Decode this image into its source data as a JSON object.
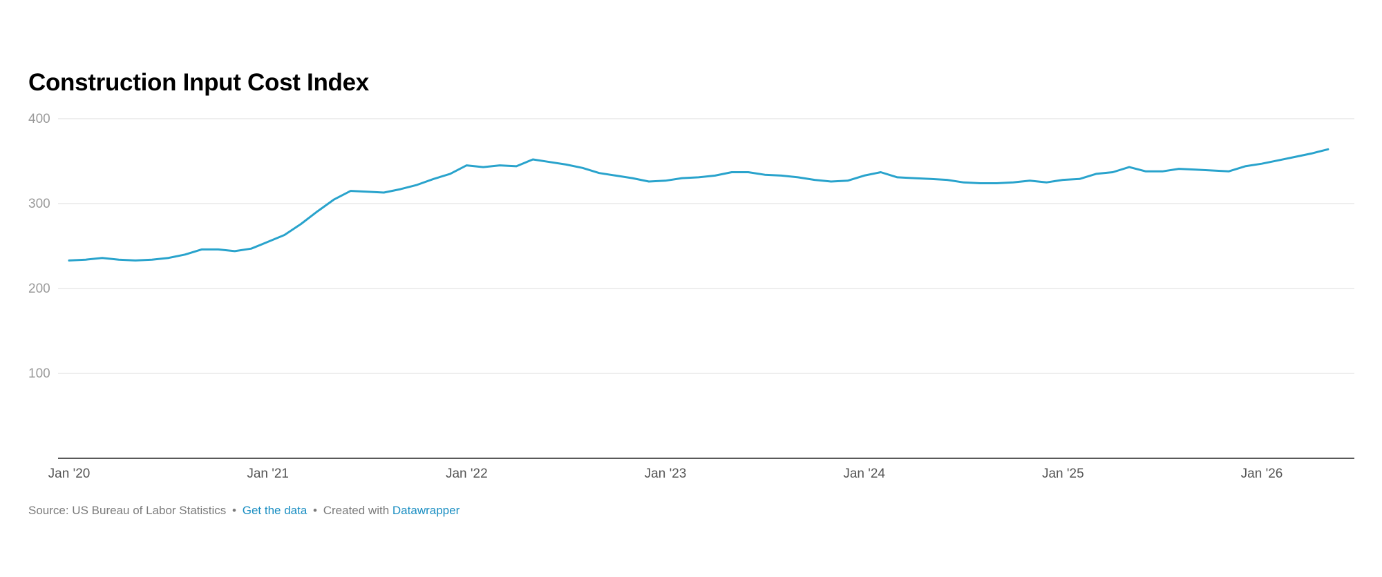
{
  "chart_data": {
    "type": "line",
    "title": "Construction Input Cost Index",
    "xlabel": "",
    "ylabel": "",
    "ylim": [
      0,
      400
    ],
    "y_ticks": [
      400,
      300,
      200,
      100
    ],
    "x_tick_labels": [
      "Jan '20",
      "Jan '21",
      "Jan '22",
      "Jan '23",
      "Jan '24",
      "Jan '25",
      "Jan '26"
    ],
    "grid": true,
    "line_color": "#29a3cc",
    "x": [
      "2020-01",
      "2020-02",
      "2020-03",
      "2020-04",
      "2020-05",
      "2020-06",
      "2020-07",
      "2020-08",
      "2020-09",
      "2020-10",
      "2020-11",
      "2020-12",
      "2021-01",
      "2021-02",
      "2021-03",
      "2021-04",
      "2021-05",
      "2021-06",
      "2021-07",
      "2021-08",
      "2021-09",
      "2021-10",
      "2021-11",
      "2021-12",
      "2022-01",
      "2022-02",
      "2022-03",
      "2022-04",
      "2022-05",
      "2022-06",
      "2022-07",
      "2022-08",
      "2022-09",
      "2022-10",
      "2022-11",
      "2022-12",
      "2023-01",
      "2023-02",
      "2023-03",
      "2023-04",
      "2023-05",
      "2023-06",
      "2023-07",
      "2023-08",
      "2023-09",
      "2023-10",
      "2023-11",
      "2023-12",
      "2024-01",
      "2024-02",
      "2024-03",
      "2024-04",
      "2024-05",
      "2024-06",
      "2024-07",
      "2024-08",
      "2024-09",
      "2024-10",
      "2024-11",
      "2024-12",
      "2025-01",
      "2025-02",
      "2025-03",
      "2025-04",
      "2025-05",
      "2025-06",
      "2025-07",
      "2025-08",
      "2025-09",
      "2025-10",
      "2025-11",
      "2025-12",
      "2026-01",
      "2026-02",
      "2026-03",
      "2026-04",
      "2026-05"
    ],
    "values": [
      233,
      234,
      236,
      234,
      233,
      234,
      236,
      240,
      246,
      246,
      244,
      247,
      255,
      263,
      276,
      291,
      305,
      315,
      314,
      313,
      317,
      322,
      329,
      335,
      345,
      343,
      345,
      344,
      352,
      349,
      346,
      342,
      336,
      333,
      330,
      326,
      327,
      330,
      331,
      333,
      337,
      337,
      334,
      333,
      331,
      328,
      326,
      327,
      333,
      337,
      331,
      330,
      329,
      328,
      325,
      324,
      324,
      325,
      327,
      325,
      328,
      329,
      335,
      337,
      343,
      338,
      338,
      341,
      340,
      339,
      338,
      344,
      347,
      351,
      355,
      359,
      364
    ]
  },
  "footer": {
    "source": "Source: US Bureau of Labor Statistics",
    "get_data": "Get the data",
    "created_with": "Created with",
    "datawrapper": "Datawrapper"
  }
}
